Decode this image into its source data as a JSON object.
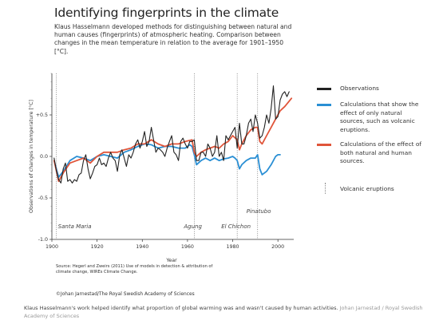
{
  "title": "Identifying fingerprints in the climate",
  "subtitle": "Klaus Hasselmann developed methods for distinguishing between natural and human causes (fingerprints) of atmospheric heating. Comparison between changes in the mean temperature in relation to the average for 1901–1950 [°C].",
  "legend": [
    {
      "id": "observations",
      "label": "Observations",
      "color": "#222222",
      "style": "solid"
    },
    {
      "id": "natural",
      "label": "Calculations that show the effect of only natural sources, such as volcanic eruptions.",
      "color": "#2a8fd4",
      "style": "solid"
    },
    {
      "id": "both",
      "label": "Calculations of the effect of both natural and human sources.",
      "color": "#e0553a",
      "style": "solid"
    },
    {
      "id": "volcanic",
      "label": "Volcanic eruptions",
      "color": "#888888",
      "style": "dotted"
    }
  ],
  "source": "Source: Hegerl and Zweirs (2011) Use of models in detection & attribution of climate change, WIREs Climate Change.",
  "copyright": "©Johan Jarnestad/The Royal Swedish Academy of Sciences",
  "caption": "Klaus Hasselmann's work helped identify what proportion of global warming was and wasn't caused by human activities.",
  "credit": "Johan Jarnestad / Royal Swedish Academy of Sciences",
  "chart_data": {
    "type": "line",
    "title": "Identifying fingerprints in the climate",
    "xlabel": "Year",
    "ylabel": "Observations of changes in temperature [°C]",
    "xlim": [
      1900,
      2007
    ],
    "ylim": [
      -1.0,
      1.0
    ],
    "xticks": [
      1900,
      1920,
      1940,
      1960,
      1980,
      2000
    ],
    "yticks": [
      {
        "value": 0.5,
        "label": "+0.5"
      },
      {
        "value": 0.0,
        "label": "0.0"
      },
      {
        "value": -0.5,
        "label": "-0.5"
      },
      {
        "value": -1.0,
        "label": "-1.0"
      }
    ],
    "legend_position": "right",
    "volcanoes": [
      {
        "name": "Santa Maria",
        "year": 1902
      },
      {
        "name": "Agung",
        "year": 1963
      },
      {
        "name": "El Chichon",
        "year": 1982
      },
      {
        "name": "Pinatubo",
        "year": 1991
      }
    ],
    "series": [
      {
        "name": "Observations",
        "color": "#222222",
        "x": [
          1901,
          1902,
          1903,
          1904,
          1905,
          1906,
          1907,
          1908,
          1909,
          1910,
          1911,
          1912,
          1913,
          1914,
          1915,
          1916,
          1917,
          1918,
          1919,
          1920,
          1921,
          1922,
          1923,
          1924,
          1925,
          1926,
          1927,
          1928,
          1929,
          1930,
          1931,
          1932,
          1933,
          1934,
          1935,
          1936,
          1937,
          1938,
          1939,
          1940,
          1941,
          1942,
          1943,
          1944,
          1945,
          1946,
          1947,
          1948,
          1949,
          1950,
          1951,
          1952,
          1953,
          1954,
          1955,
          1956,
          1957,
          1958,
          1959,
          1960,
          1961,
          1962,
          1963,
          1964,
          1965,
          1966,
          1967,
          1968,
          1969,
          1970,
          1971,
          1972,
          1973,
          1974,
          1975,
          1976,
          1977,
          1978,
          1979,
          1980,
          1981,
          1982,
          1983,
          1984,
          1985,
          1986,
          1987,
          1988,
          1989,
          1990,
          1991,
          1992,
          1993,
          1994,
          1995,
          1996,
          1997,
          1998,
          1999,
          2000,
          2001,
          2002,
          2003,
          2004,
          2005
        ],
        "y": [
          -0.02,
          -0.18,
          -0.28,
          -0.32,
          -0.15,
          -0.08,
          -0.3,
          -0.28,
          -0.32,
          -0.28,
          -0.3,
          -0.22,
          -0.2,
          -0.05,
          0.02,
          -0.15,
          -0.27,
          -0.2,
          -0.12,
          -0.1,
          -0.02,
          -0.1,
          -0.08,
          -0.12,
          -0.02,
          0.05,
          -0.02,
          -0.05,
          -0.18,
          0.02,
          0.08,
          -0.02,
          -0.12,
          0.02,
          -0.02,
          0.05,
          0.15,
          0.2,
          0.1,
          0.18,
          0.3,
          0.12,
          0.18,
          0.35,
          0.2,
          0.05,
          0.1,
          0.08,
          0.05,
          0.0,
          0.1,
          0.18,
          0.25,
          0.05,
          0.02,
          -0.05,
          0.18,
          0.22,
          0.15,
          0.1,
          0.18,
          0.18,
          0.2,
          -0.05,
          -0.05,
          0.05,
          0.05,
          0.0,
          0.15,
          0.1,
          0.0,
          0.05,
          0.25,
          0.0,
          0.05,
          -0.05,
          0.25,
          0.2,
          0.25,
          0.3,
          0.35,
          0.1,
          0.4,
          0.15,
          0.15,
          0.25,
          0.4,
          0.45,
          0.3,
          0.5,
          0.4,
          0.22,
          0.25,
          0.35,
          0.5,
          0.4,
          0.58,
          0.85,
          0.45,
          0.48,
          0.68,
          0.75,
          0.78,
          0.72,
          0.78
        ]
      },
      {
        "name": "Calculations that show the effect of only natural sources, such as volcanic eruptions.",
        "color": "#2a8fd4",
        "x": [
          1901,
          1903,
          1905,
          1908,
          1911,
          1914,
          1917,
          1920,
          1923,
          1926,
          1929,
          1932,
          1935,
          1938,
          1941,
          1944,
          1947,
          1950,
          1953,
          1956,
          1959,
          1961,
          1962,
          1963,
          1964,
          1966,
          1968,
          1970,
          1972,
          1974,
          1976,
          1978,
          1980,
          1981,
          1982,
          1983,
          1984,
          1986,
          1988,
          1990,
          1991,
          1992,
          1993,
          1995,
          1997,
          1999,
          2000,
          2001
        ],
        "y": [
          -0.05,
          -0.25,
          -0.18,
          -0.05,
          0.0,
          -0.02,
          -0.05,
          0.0,
          0.02,
          0.0,
          -0.02,
          0.05,
          0.08,
          0.12,
          0.15,
          0.14,
          0.1,
          0.12,
          0.12,
          0.1,
          0.1,
          0.14,
          0.12,
          0.02,
          -0.1,
          -0.05,
          -0.02,
          -0.05,
          -0.02,
          -0.05,
          -0.03,
          -0.02,
          0.0,
          -0.02,
          -0.05,
          -0.15,
          -0.1,
          -0.05,
          -0.02,
          -0.02,
          0.02,
          -0.15,
          -0.22,
          -0.18,
          -0.1,
          0.0,
          0.02,
          0.02
        ]
      },
      {
        "name": "Calculations of the effect of both natural and human sources.",
        "color": "#e0553a",
        "x": [
          1901,
          1903,
          1905,
          1908,
          1911,
          1914,
          1917,
          1920,
          1923,
          1926,
          1929,
          1932,
          1935,
          1938,
          1941,
          1944,
          1947,
          1950,
          1953,
          1956,
          1959,
          1962,
          1963,
          1964,
          1966,
          1968,
          1970,
          1972,
          1974,
          1976,
          1978,
          1980,
          1982,
          1983,
          1984,
          1986,
          1988,
          1990,
          1991,
          1992,
          1993,
          1995,
          1997,
          1999,
          2001,
          2003,
          2006
        ],
        "y": [
          -0.05,
          -0.3,
          -0.2,
          -0.08,
          -0.05,
          -0.02,
          -0.08,
          0.0,
          0.05,
          0.05,
          0.05,
          0.08,
          0.1,
          0.15,
          0.15,
          0.2,
          0.15,
          0.12,
          0.15,
          0.15,
          0.18,
          0.2,
          0.05,
          0.0,
          0.05,
          0.08,
          0.1,
          0.12,
          0.1,
          0.15,
          0.18,
          0.25,
          0.2,
          0.08,
          0.15,
          0.25,
          0.32,
          0.35,
          0.35,
          0.18,
          0.15,
          0.25,
          0.35,
          0.45,
          0.55,
          0.6,
          0.7
        ]
      }
    ]
  }
}
